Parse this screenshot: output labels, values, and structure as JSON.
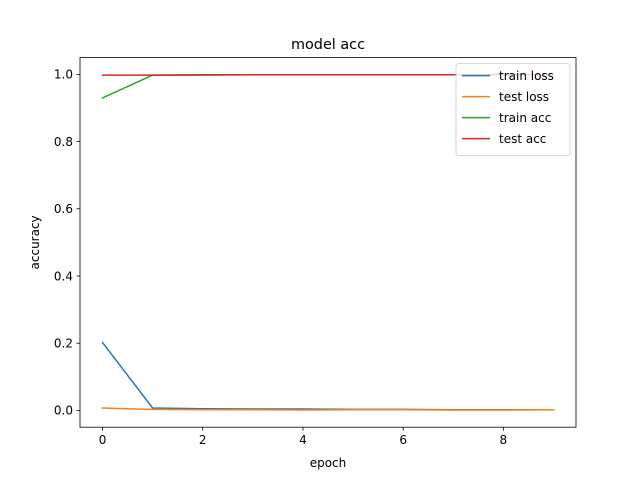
{
  "chart_data": {
    "type": "line",
    "title": "model acc",
    "xlabel": "epoch",
    "ylabel": "accuracy",
    "xlim": [
      -0.45,
      9.45
    ],
    "ylim": [
      -0.05,
      1.05
    ],
    "xticks": [
      0,
      2,
      4,
      6,
      8
    ],
    "xtick_labels": [
      "0",
      "2",
      "4",
      "6",
      "8"
    ],
    "yticks": [
      0.0,
      0.2,
      0.4,
      0.6,
      0.8,
      1.0
    ],
    "ytick_labels": [
      "0.0",
      "0.2",
      "0.4",
      "0.6",
      "0.8",
      "1.0"
    ],
    "grid": false,
    "legend_position": "upper-right",
    "x": [
      0,
      1,
      2,
      3,
      4,
      5,
      6,
      7,
      8,
      9
    ],
    "series": [
      {
        "name": "train loss",
        "color": "#1f77b4",
        "values": [
          0.202,
          0.007,
          0.005,
          0.004,
          0.004,
          0.003,
          0.003,
          0.002,
          0.002,
          0.002
        ]
      },
      {
        "name": "test loss",
        "color": "#ff7f0e",
        "values": [
          0.007,
          0.003,
          0.002,
          0.002,
          0.001,
          0.002,
          0.002,
          0.001,
          0.001,
          0.002
        ]
      },
      {
        "name": "train acc",
        "color": "#2ca02c",
        "values": [
          0.93,
          0.998,
          0.998,
          0.999,
          0.999,
          0.999,
          0.999,
          0.999,
          0.999,
          0.999
        ]
      },
      {
        "name": "test acc",
        "color": "#d62728",
        "values": [
          0.998,
          0.998,
          0.999,
          0.999,
          0.999,
          0.999,
          0.999,
          0.999,
          1.0,
          0.999
        ]
      }
    ]
  }
}
